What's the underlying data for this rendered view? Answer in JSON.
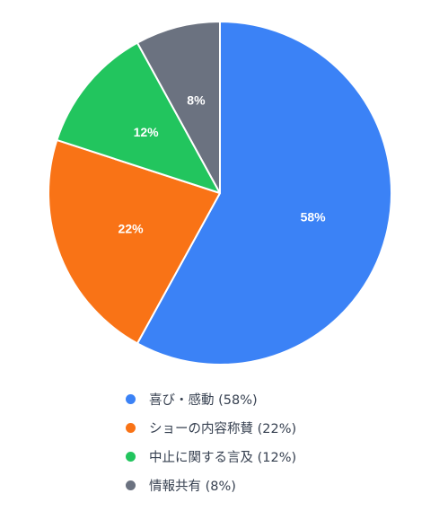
{
  "chart_data": {
    "type": "pie",
    "start_angle_deg": 0,
    "direction": "clockwise",
    "slice_border_color": "#ffffff",
    "legend_position": "bottom",
    "series": [
      {
        "name": "喜び・感動",
        "value": 58,
        "label": "58%",
        "legend": "喜び・感動 (58%)",
        "color": "#3b82f6"
      },
      {
        "name": "ショーの内容称賛",
        "value": 22,
        "label": "22%",
        "legend": "ショーの内容称賛 (22%)",
        "color": "#f97316"
      },
      {
        "name": "中止に関する言及",
        "value": 12,
        "label": "12%",
        "legend": "中止に関する言及 (12%)",
        "color": "#22c55e"
      },
      {
        "name": "情報共有",
        "value": 8,
        "label": "8%",
        "legend": "情報共有 (8%)",
        "color": "#6b7280"
      }
    ]
  }
}
